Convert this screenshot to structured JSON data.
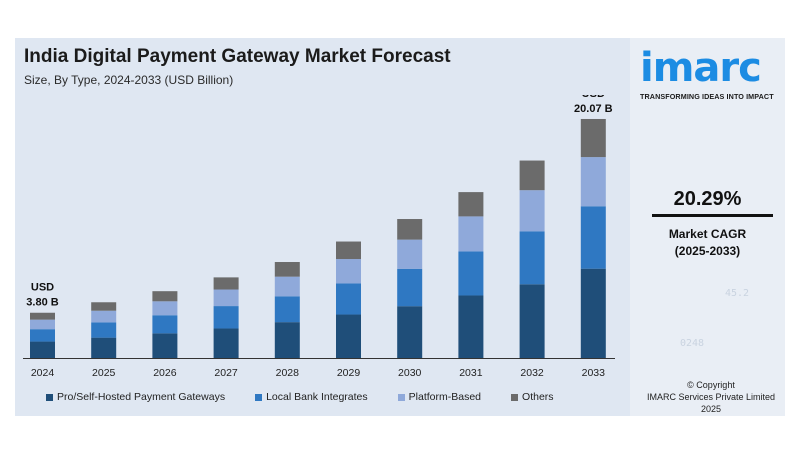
{
  "brand": {
    "logo_text": "imarc",
    "tagline": "TRANSFORMING IDEAS INTO IMPACT",
    "accent": "#1c8ce3"
  },
  "cagr": {
    "value": "20.29%",
    "label": "Market CAGR",
    "period": "(2025-2033)"
  },
  "copyright": {
    "line1": "© Copyright",
    "line2": "IMARC Services Private Limited 2025"
  },
  "chart_data": {
    "type": "bar",
    "stacked": true,
    "title": "India Digital Payment Gateway Market Forecast",
    "subtitle": "Size, By Type, 2024-2033 (USD Billion)",
    "categories": [
      "2024",
      "2025",
      "2026",
      "2027",
      "2028",
      "2029",
      "2030",
      "2031",
      "2032",
      "2033"
    ],
    "series": [
      {
        "name": "Pro/Self-Hosted Payment Gateways",
        "color": "#1f4e79",
        "values": [
          1.38,
          1.71,
          2.07,
          2.48,
          3.01,
          3.65,
          4.35,
          5.25,
          6.19,
          7.5
        ]
      },
      {
        "name": "Local Bank Integrates",
        "color": "#2f78c2",
        "values": [
          1.04,
          1.28,
          1.52,
          1.88,
          2.17,
          2.61,
          3.14,
          3.7,
          4.45,
          5.24
        ]
      },
      {
        "name": "Platform-Based",
        "color": "#8fa9da",
        "values": [
          0.8,
          0.98,
          1.17,
          1.39,
          1.65,
          2.05,
          2.45,
          2.94,
          3.45,
          4.13
        ]
      },
      {
        "name": "Others",
        "color": "#6b6b6b",
        "values": [
          0.58,
          0.71,
          0.85,
          1.02,
          1.23,
          1.47,
          1.73,
          2.04,
          2.49,
          3.2
        ]
      }
    ],
    "annotations": [
      {
        "category": "2024",
        "line1": "USD",
        "line2": "3.80 B"
      },
      {
        "category": "2033",
        "line1": "USD",
        "line2": "20.07 B"
      }
    ],
    "ylim": [
      0,
      22
    ],
    "grid": false,
    "legend": "bottom"
  }
}
